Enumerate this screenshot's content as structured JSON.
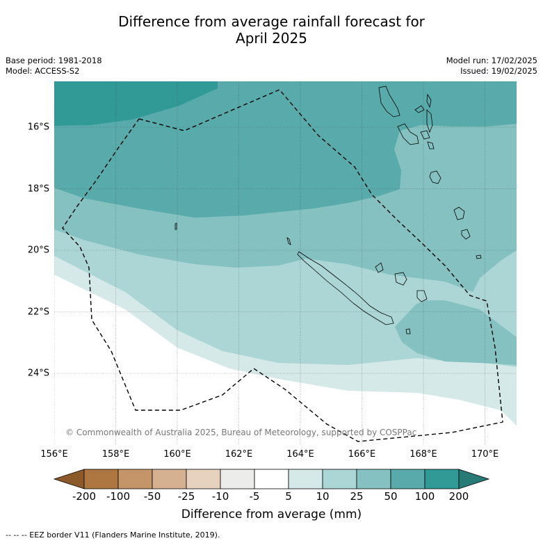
{
  "title_line1": "Difference from average rainfall forecast for",
  "title_line2": "April 2025",
  "meta_left": {
    "base_period": "Base period: 1981-2018",
    "model": "Model: ACCESS-S2"
  },
  "meta_right": {
    "model_run": "Model run: 17/02/2025",
    "issued": "Issued: 19/02/2025"
  },
  "copyright": "© Commonwealth of Australia 2025, Bureau of Meteorology, supported by COSPPac",
  "x_ticks": [
    "156°E",
    "158°E",
    "160°E",
    "162°E",
    "164°E",
    "166°E",
    "168°E",
    "170°E"
  ],
  "y_ticks": [
    "16°S",
    "18°S",
    "20°S",
    "22°S",
    "24°S"
  ],
  "colorbar": {
    "labels": [
      "-200",
      "-100",
      "-50",
      "-25",
      "-10",
      "-5",
      "5",
      "10",
      "25",
      "50",
      "100",
      "200"
    ],
    "colors": [
      "#8c5a2a",
      "#ae7640",
      "#c49568",
      "#d5b191",
      "#e7d2c0",
      "#ececea",
      "#ffffff",
      "#d5eae8",
      "#abd6d5",
      "#84c1c0",
      "#59abab",
      "#329a96",
      "#277a76"
    ],
    "title": "Difference from average (mm)"
  },
  "footer": "--  --  -- EEZ border V11 (Flanders Marine Institute, 2019)."
}
